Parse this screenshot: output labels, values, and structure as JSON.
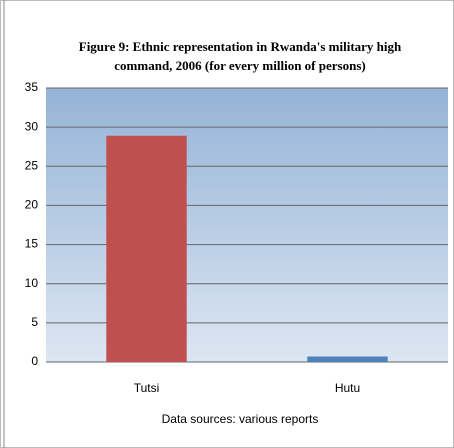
{
  "chart_data": {
    "type": "bar",
    "title": [
      "Figure 9: Ethnic representation in Rwanda's military high",
      "command, 2006 (for every million of persons)"
    ],
    "categories": [
      "Tutsi",
      "Hutu"
    ],
    "values": [
      28.9,
      0.7
    ],
    "colors": [
      "#c0504d",
      "#4f81bd"
    ],
    "xlabel": "Data sources: various reports",
    "ylim": [
      0,
      35
    ],
    "yticks": [
      0,
      5,
      10,
      15,
      20,
      25,
      30,
      35
    ],
    "grid": true
  }
}
